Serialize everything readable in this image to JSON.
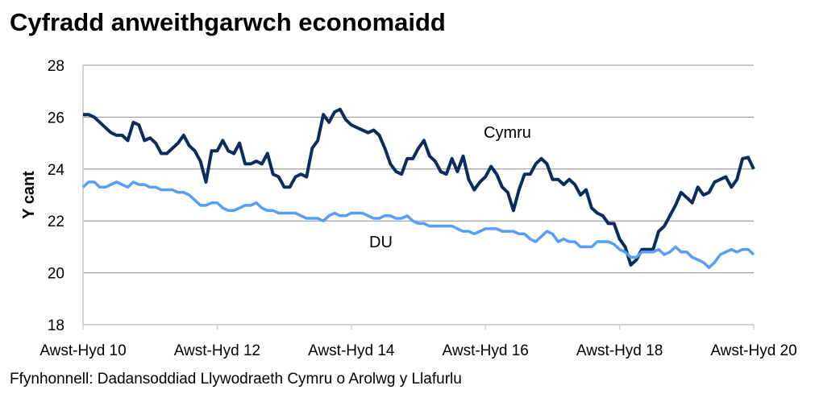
{
  "chart_data": {
    "type": "line",
    "title": "Cyfradd anweithgarwch economaidd",
    "ylabel": "Y cant",
    "xlabel": "",
    "ylim": [
      18,
      28
    ],
    "yticks": [
      18,
      20,
      22,
      24,
      26,
      28
    ],
    "xtick_labels": [
      "Awst-Hyd 10",
      "Awst-Hyd 12",
      "Awst-Hyd 14",
      "Awst-Hyd 16",
      "Awst-Hyd 18",
      "Awst-Hyd 20"
    ],
    "grid": true,
    "legend": "inline labels",
    "source": "Ffynhonnell: Dadansoddiad Llywodraeth Cymru o Arolwg y Llafurlu",
    "series": [
      {
        "name": "Cymru",
        "color": "#0a2d5e",
        "values": [
          26.1,
          26.1,
          26.0,
          25.8,
          25.6,
          25.4,
          25.3,
          25.3,
          25.1,
          25.8,
          25.7,
          25.1,
          25.2,
          25.0,
          24.6,
          24.6,
          24.8,
          25.0,
          25.3,
          24.9,
          24.7,
          24.3,
          23.5,
          24.7,
          24.7,
          25.1,
          24.7,
          24.6,
          25.0,
          24.2,
          24.2,
          24.3,
          24.2,
          24.6,
          23.8,
          23.7,
          23.3,
          23.3,
          23.7,
          23.8,
          23.7,
          24.8,
          25.1,
          26.1,
          25.8,
          26.2,
          26.3,
          25.9,
          25.7,
          25.6,
          25.5,
          25.4,
          25.5,
          25.3,
          24.8,
          24.2,
          23.9,
          23.8,
          24.4,
          24.4,
          24.8,
          25.1,
          24.5,
          24.3,
          23.9,
          23.8,
          24.4,
          23.9,
          24.5,
          23.6,
          23.2,
          23.5,
          23.7,
          24.1,
          23.8,
          23.3,
          23.1,
          22.4,
          23.2,
          23.8,
          23.8,
          24.2,
          24.4,
          24.2,
          23.6,
          23.6,
          23.4,
          23.6,
          23.4,
          23.0,
          23.2,
          22.5,
          22.3,
          22.2,
          21.9,
          21.9,
          21.3,
          21.0,
          20.3,
          20.5,
          20.9,
          20.9,
          20.9,
          21.6,
          21.8,
          22.2,
          22.6,
          23.1,
          22.9,
          22.7,
          23.3,
          23.0,
          23.1,
          23.5,
          23.6,
          23.7,
          23.3,
          23.6,
          24.4,
          24.45,
          24.0
        ]
      },
      {
        "name": "DU",
        "color": "#559ffa",
        "values": [
          23.3,
          23.5,
          23.5,
          23.3,
          23.3,
          23.4,
          23.5,
          23.4,
          23.3,
          23.5,
          23.4,
          23.4,
          23.3,
          23.3,
          23.2,
          23.2,
          23.2,
          23.1,
          23.1,
          23.0,
          22.8,
          22.6,
          22.6,
          22.7,
          22.7,
          22.5,
          22.4,
          22.4,
          22.5,
          22.6,
          22.6,
          22.7,
          22.5,
          22.4,
          22.4,
          22.3,
          22.3,
          22.3,
          22.3,
          22.2,
          22.1,
          22.1,
          22.1,
          22.0,
          22.2,
          22.3,
          22.2,
          22.2,
          22.3,
          22.3,
          22.3,
          22.2,
          22.1,
          22.1,
          22.2,
          22.2,
          22.1,
          22.1,
          22.2,
          22.0,
          21.9,
          21.9,
          21.8,
          21.8,
          21.8,
          21.8,
          21.8,
          21.7,
          21.6,
          21.6,
          21.5,
          21.6,
          21.7,
          21.7,
          21.7,
          21.6,
          21.6,
          21.6,
          21.5,
          21.5,
          21.3,
          21.2,
          21.4,
          21.6,
          21.5,
          21.2,
          21.3,
          21.2,
          21.2,
          21.0,
          21.0,
          21.0,
          21.2,
          21.2,
          21.2,
          21.1,
          20.9,
          20.8,
          20.6,
          20.6,
          20.8,
          20.8,
          20.8,
          20.9,
          20.7,
          20.8,
          21.0,
          20.8,
          20.8,
          20.6,
          20.5,
          20.4,
          20.2,
          20.4,
          20.7,
          20.8,
          20.9,
          20.8,
          20.9,
          20.9,
          20.7
        ]
      }
    ]
  }
}
